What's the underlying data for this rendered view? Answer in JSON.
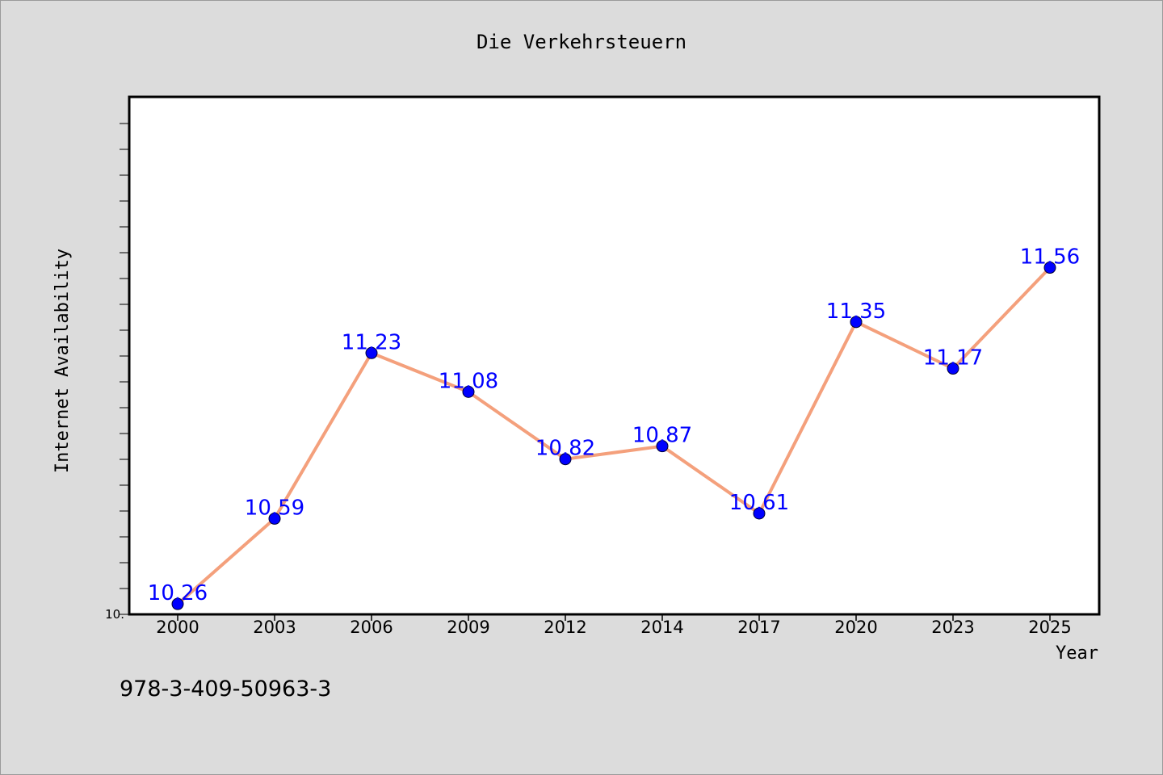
{
  "chart_data": {
    "type": "line",
    "title": "Die Verkehrsteuern",
    "xlabel": "Year",
    "ylabel": "Internet Availability",
    "categories": [
      "2000",
      "2003",
      "2006",
      "2009",
      "2012",
      "2014",
      "2017",
      "2020",
      "2023",
      "2025"
    ],
    "series": [
      {
        "values": [
          10.26,
          10.59,
          11.23,
          11.08,
          10.82,
          10.87,
          10.61,
          11.35,
          11.17,
          11.56
        ],
        "labels": [
          "10.26",
          "10.59",
          "11.23",
          "11.08",
          "10.82",
          "10.87",
          "10.61",
          "11.35",
          "11.17",
          "11.56"
        ],
        "line_color": "#f4a07c",
        "marker_color": "#0000ff"
      }
    ],
    "ylim": [
      10.22,
      12.22
    ],
    "y_tick_label": "10.",
    "grid": false,
    "legend": "none"
  },
  "footer": {
    "isbn": "978-3-409-50963-3"
  }
}
